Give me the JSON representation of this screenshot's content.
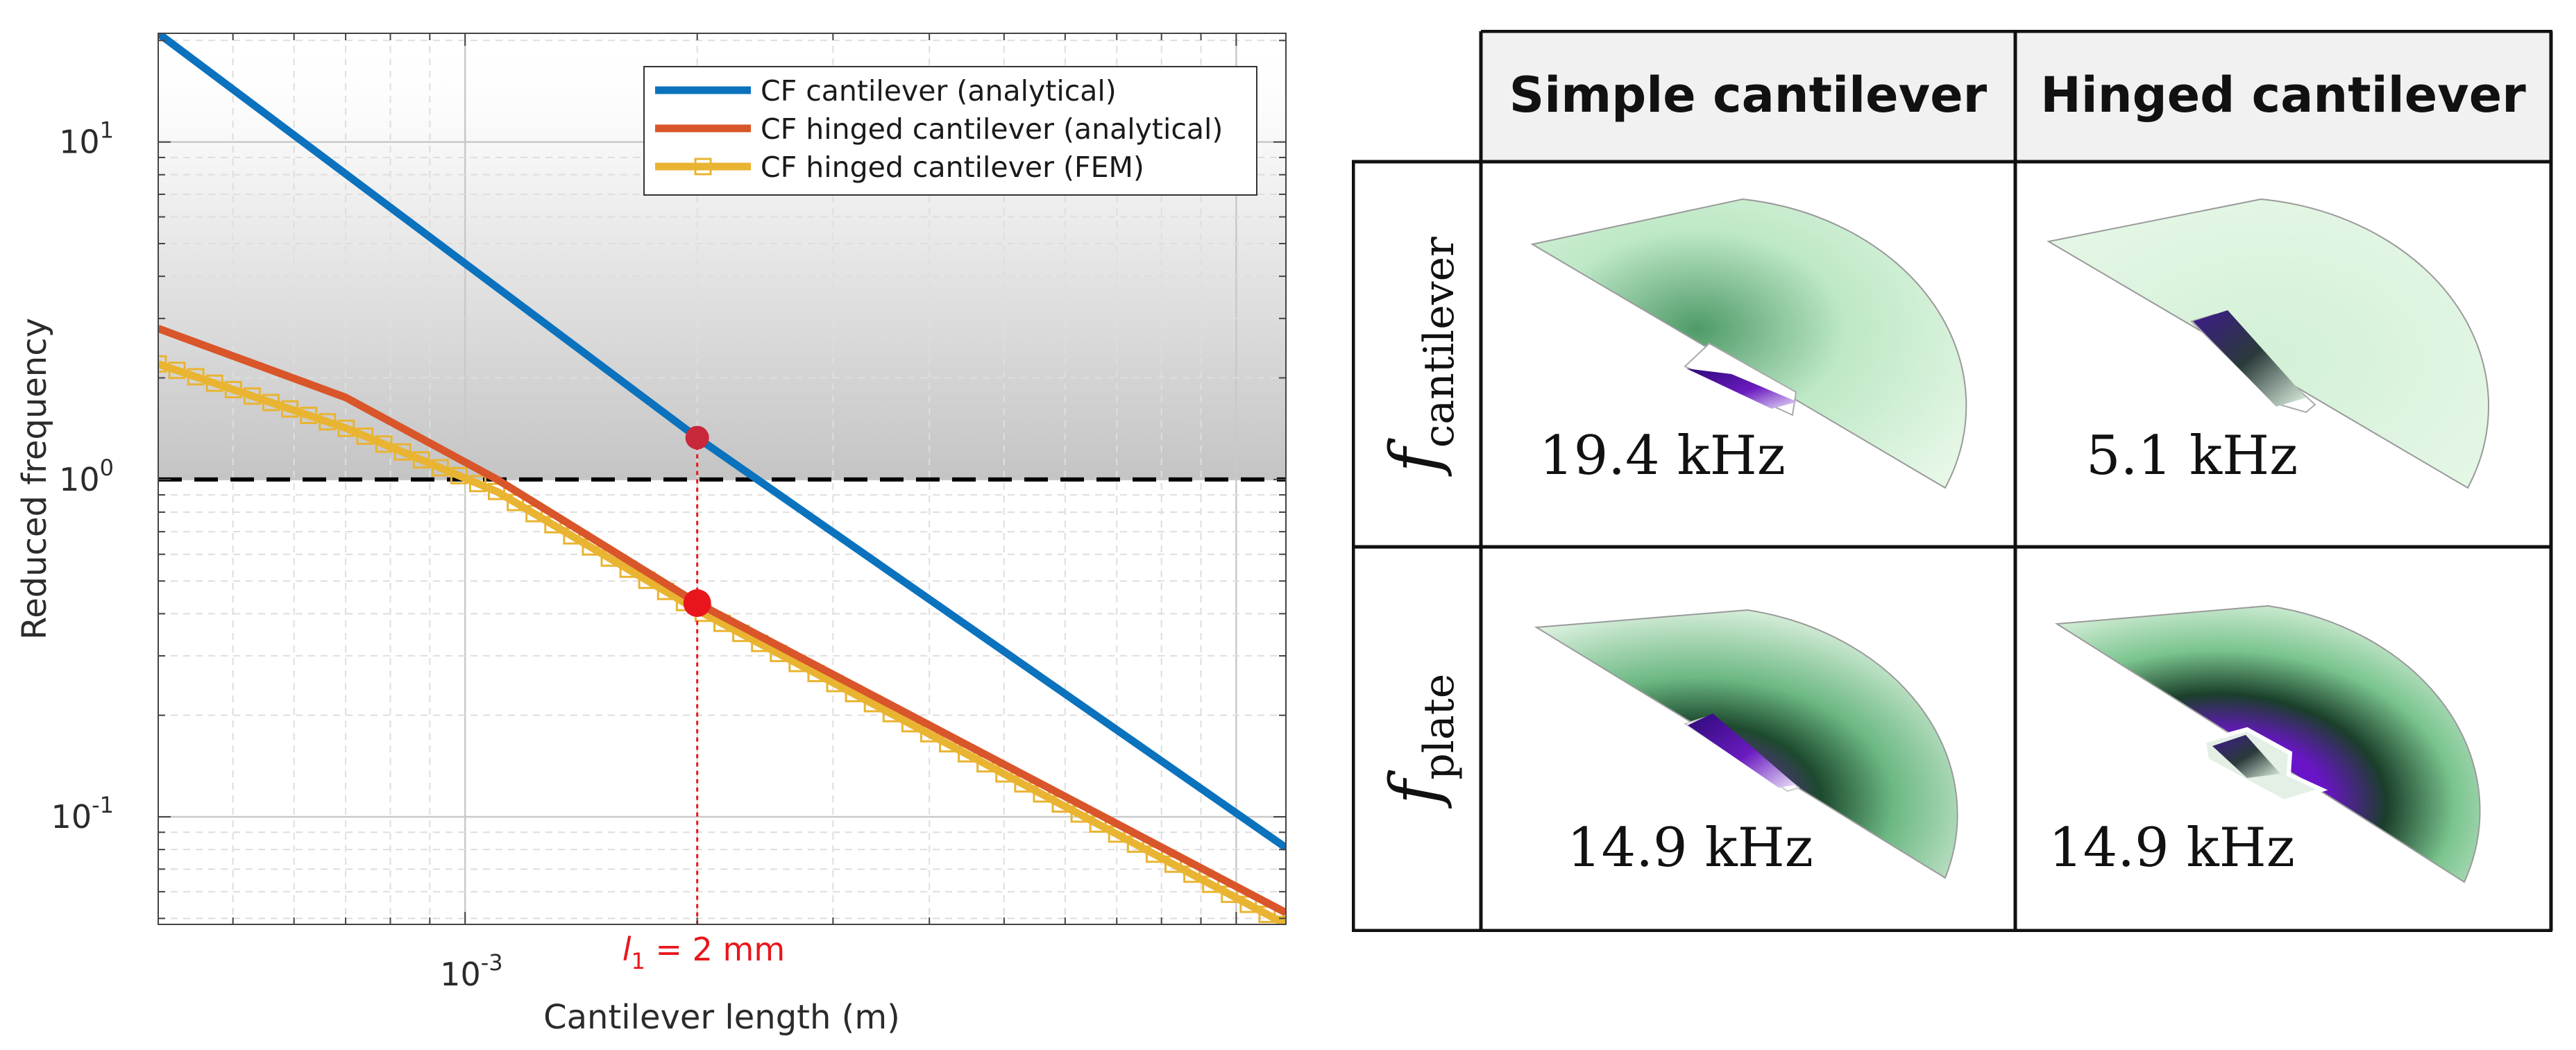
{
  "chart_data": {
    "type": "line",
    "xscale": "log",
    "yscale": "log",
    "xlim": [
      0.0004,
      0.0116
    ],
    "ylim": [
      0.048,
      21
    ],
    "xlabel": "Cantilever length (m)",
    "ylabel": "Reduced frequency",
    "grid": true,
    "legend_position": "top-right",
    "y_ticks": [
      {
        "value": 0.1,
        "base": "10",
        "exp": "-1"
      },
      {
        "value": 1,
        "base": "10",
        "exp": "0"
      },
      {
        "value": 10,
        "base": "10",
        "exp": "1"
      }
    ],
    "x_ticks": [
      {
        "value": 0.001,
        "base": "10",
        "exp": "-3"
      }
    ],
    "threshold": {
      "value": 1,
      "style": "dashed"
    },
    "shaded_region": {
      "from": 1,
      "to": 21,
      "description": "gradient"
    },
    "series": [
      {
        "name": "CF cantilever (analytical)",
        "color": "#0b72bd",
        "marker": "none",
        "x": [
          0.0004,
          0.002,
          0.0116
        ],
        "y": [
          21,
          1.33,
          0.081
        ]
      },
      {
        "name": "CF hinged cantilever (analytical)",
        "color": "#d9552a",
        "marker": "none",
        "x": [
          0.0004,
          0.0007,
          0.0011,
          0.002,
          0.0116
        ],
        "y": [
          2.8,
          1.75,
          1.0,
          0.43,
          0.052
        ]
      },
      {
        "name": "CF hinged cantilever (FEM)",
        "color": "#e9b431",
        "marker": "square",
        "x": [
          0.0004,
          0.0007,
          0.0011,
          0.002,
          0.0116
        ],
        "y": [
          2.2,
          1.42,
          0.92,
          0.41,
          0.048
        ]
      }
    ],
    "annotation": {
      "x": 0.002,
      "points": [
        {
          "y": 1.33,
          "color": "#c8283a"
        },
        {
          "y": 0.43,
          "color": "#e8161c"
        }
      ],
      "label_sym": "l",
      "label_sub": "1",
      "label_rest": " = 2 mm",
      "color": "#e8161c"
    }
  },
  "table": {
    "columns": [
      "Simple cantilever",
      "Hinged cantilever"
    ],
    "rows": [
      {
        "symbol": "f",
        "subscript": "cantilever",
        "cells": [
          {
            "freq": "19.4 kHz"
          },
          {
            "freq": "5.1 kHz"
          }
        ]
      },
      {
        "symbol": "f",
        "subscript": "plate",
        "cells": [
          {
            "freq": "14.9 kHz"
          },
          {
            "freq": "14.9 kHz"
          }
        ]
      }
    ]
  }
}
